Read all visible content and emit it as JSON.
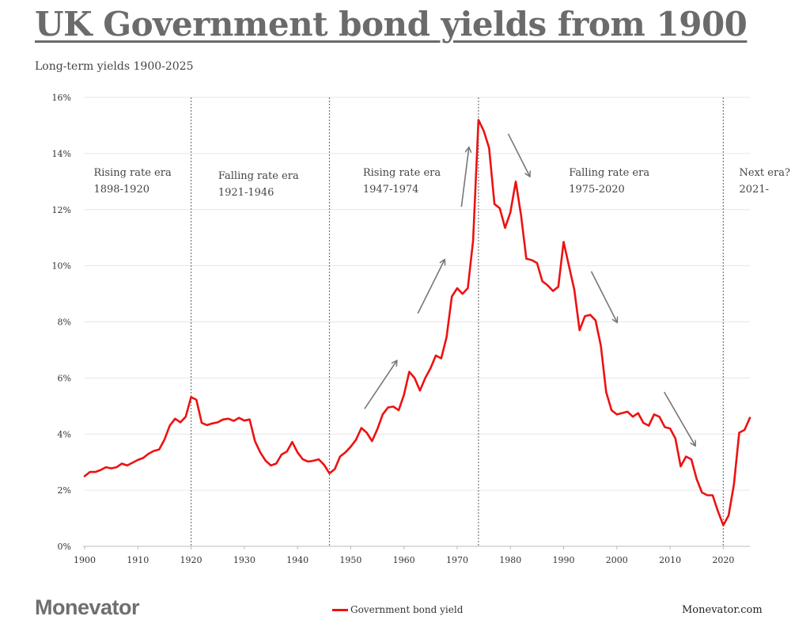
{
  "title": "UK Government bond yields from 1900",
  "subtitle": "Long-term yields 1900-2025",
  "brand": "Monevator",
  "site": "Monevator.com",
  "colors": {
    "line": "#ee1111",
    "arrow": "#777777",
    "grid": "#e6e6e6",
    "axis": "#bbbbbb",
    "divider": "#777777"
  },
  "chart_data": {
    "type": "line",
    "xlim": [
      1900,
      2025
    ],
    "ylim": [
      0,
      16
    ],
    "grid": true,
    "x_ticks": [
      1900,
      1910,
      1920,
      1930,
      1940,
      1950,
      1960,
      1970,
      1980,
      1990,
      2000,
      2010,
      2020
    ],
    "y_ticks": [
      {
        "value": 0,
        "label": "0%"
      },
      {
        "value": 2,
        "label": "2%"
      },
      {
        "value": 4,
        "label": "4%"
      },
      {
        "value": 6,
        "label": "6%"
      },
      {
        "value": 8,
        "label": "8%"
      },
      {
        "value": 10,
        "label": "10%"
      },
      {
        "value": 12,
        "label": "12%"
      },
      {
        "value": 14,
        "label": "14%"
      },
      {
        "value": 16,
        "label": "16%"
      }
    ],
    "era_dividers": [
      1920,
      1946,
      1974,
      2020
    ],
    "era_labels": [
      {
        "name": "Rising rate era",
        "years": "1898-1920",
        "x": 1901.7,
        "y": 13.2
      },
      {
        "name": "Falling rate era",
        "years": "1921-1946",
        "x": 1925.1,
        "y": 13.1
      },
      {
        "name": "Rising rate era",
        "years": "1947-1974",
        "x": 1952.3,
        "y": 13.2
      },
      {
        "name": "Falling rate era",
        "years": "1975-2020",
        "x": 1991.0,
        "y": 13.2
      },
      {
        "name": "Next era?",
        "years": "2021-",
        "x": 2023.0,
        "y": 13.2
      }
    ],
    "trend_arrows": [
      {
        "from": [
          1952.6,
          4.9
        ],
        "to": [
          1958.6,
          6.6
        ]
      },
      {
        "from": [
          1962.6,
          8.3
        ],
        "to": [
          1967.6,
          10.2
        ]
      },
      {
        "from": [
          1970.8,
          12.1
        ],
        "to": [
          1972.2,
          14.2
        ]
      },
      {
        "from": [
          1979.6,
          14.7
        ],
        "to": [
          1983.6,
          13.2
        ]
      },
      {
        "from": [
          1995.2,
          9.8
        ],
        "to": [
          2000.0,
          8.0
        ]
      },
      {
        "from": [
          2008.9,
          5.5
        ],
        "to": [
          2014.7,
          3.6
        ]
      }
    ],
    "series": [
      {
        "name": "Government bond yield",
        "x": [
          1900,
          1901,
          1902,
          1903,
          1904,
          1905,
          1906,
          1907,
          1908,
          1909,
          1910,
          1911,
          1912,
          1913,
          1914,
          1915,
          1916,
          1917,
          1918,
          1919,
          1920,
          1921,
          1922,
          1923,
          1924,
          1925,
          1926,
          1927,
          1928,
          1929,
          1930,
          1931,
          1932,
          1933,
          1934,
          1935,
          1936,
          1937,
          1938,
          1939,
          1940,
          1941,
          1942,
          1943,
          1944,
          1945,
          1946,
          1947,
          1948,
          1949,
          1950,
          1951,
          1952,
          1953,
          1954,
          1955,
          1956,
          1957,
          1958,
          1959,
          1960,
          1961,
          1962,
          1963,
          1964,
          1965,
          1966,
          1967,
          1968,
          1969,
          1970,
          1971,
          1972,
          1973,
          1974,
          1975,
          1976,
          1977,
          1978,
          1979,
          1980,
          1981,
          1982,
          1983,
          1984,
          1985,
          1986,
          1987,
          1988,
          1989,
          1990,
          1991,
          1992,
          1993,
          1994,
          1995,
          1996,
          1997,
          1998,
          1999,
          2000,
          2001,
          2002,
          2003,
          2004,
          2005,
          2006,
          2007,
          2008,
          2009,
          2010,
          2011,
          2012,
          2013,
          2014,
          2015,
          2016,
          2017,
          2018,
          2019,
          2020,
          2021,
          2022,
          2023,
          2024,
          2025
        ],
        "values": [
          2.5,
          2.65,
          2.65,
          2.72,
          2.82,
          2.78,
          2.82,
          2.95,
          2.88,
          2.98,
          3.08,
          3.15,
          3.3,
          3.4,
          3.45,
          3.8,
          4.3,
          4.55,
          4.42,
          4.62,
          5.32,
          5.22,
          4.4,
          4.32,
          4.38,
          4.42,
          4.52,
          4.55,
          4.47,
          4.58,
          4.48,
          4.52,
          3.75,
          3.35,
          3.05,
          2.88,
          2.95,
          3.27,
          3.38,
          3.72,
          3.35,
          3.1,
          3.02,
          3.05,
          3.1,
          2.9,
          2.6,
          2.75,
          3.2,
          3.35,
          3.55,
          3.8,
          4.22,
          4.05,
          3.75,
          4.17,
          4.7,
          4.95,
          4.98,
          4.85,
          5.4,
          6.22,
          6.0,
          5.55,
          6.0,
          6.35,
          6.8,
          6.7,
          7.45,
          8.9,
          9.2,
          9.0,
          9.2,
          10.9,
          15.2,
          14.8,
          14.2,
          12.2,
          12.05,
          11.35,
          11.9,
          13.0,
          11.8,
          10.25,
          10.2,
          10.1,
          9.45,
          9.3,
          9.1,
          9.25,
          10.85,
          10.0,
          9.15,
          7.7,
          8.2,
          8.25,
          8.05,
          7.15,
          5.5,
          4.85,
          4.7,
          4.75,
          4.8,
          4.62,
          4.75,
          4.4,
          4.3,
          4.7,
          4.62,
          4.25,
          4.2,
          3.85,
          2.85,
          3.2,
          3.1,
          2.4,
          1.92,
          1.82,
          1.82,
          1.25,
          0.75,
          1.1,
          2.2,
          4.05,
          4.15,
          4.58
        ]
      }
    ]
  }
}
